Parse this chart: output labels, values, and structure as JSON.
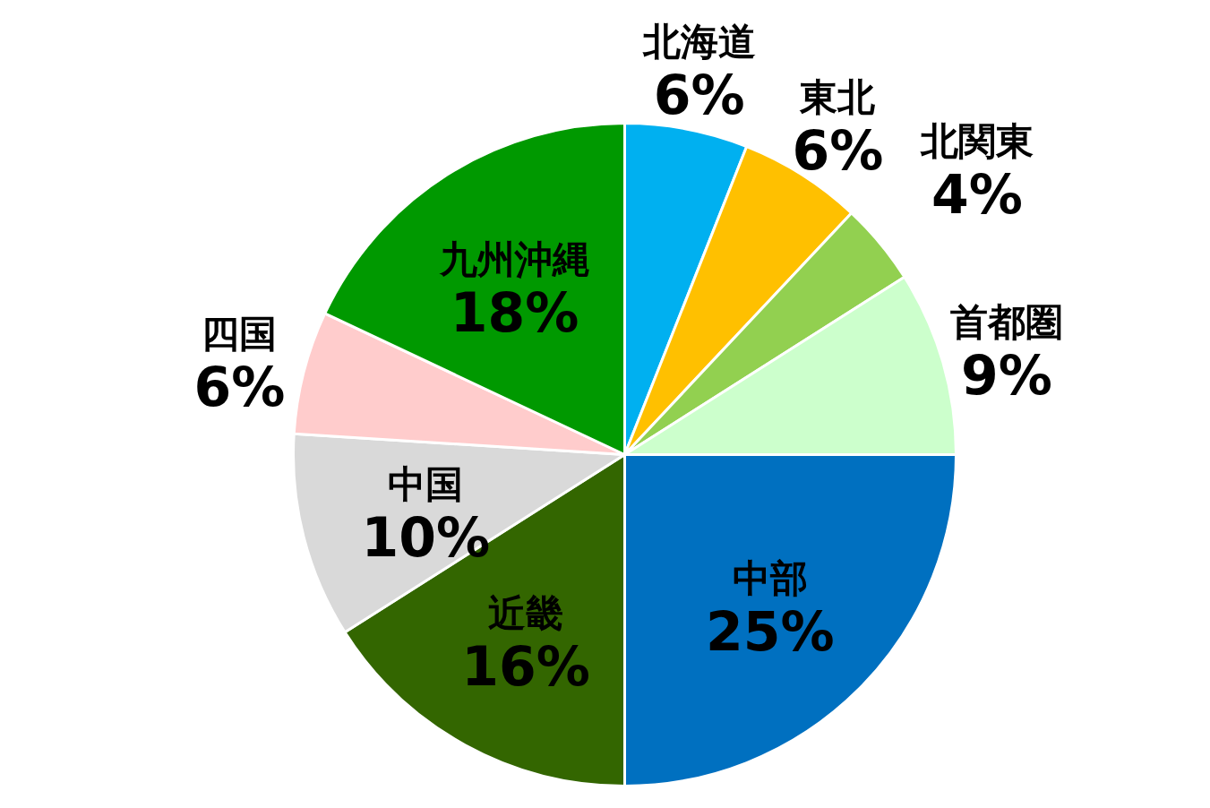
{
  "chart_data": {
    "type": "pie",
    "categories": [
      "北海道",
      "東北",
      "北関東",
      "首都圏",
      "中部",
      "近畿",
      "中国",
      "四国",
      "九州沖縄"
    ],
    "values": [
      6,
      6,
      4,
      9,
      25,
      16,
      10,
      6,
      18
    ],
    "value_labels": [
      "6%",
      "6%",
      "4%",
      "9%",
      "25%",
      "16%",
      "10%",
      "6%",
      "18%"
    ],
    "colors": [
      "#00b0f0",
      "#ffc000",
      "#92d050",
      "#ccffcc",
      "#0070c0",
      "#336600",
      "#d9d9d9",
      "#ffcccc",
      "#009900"
    ]
  }
}
